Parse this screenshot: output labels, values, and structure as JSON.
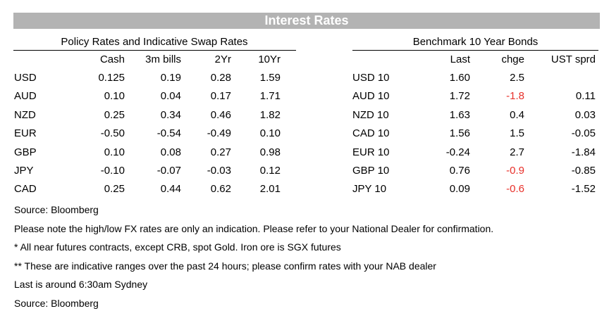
{
  "banner": {
    "title": "Interest Rates"
  },
  "policy": {
    "title": "Policy Rates and Indicative Swap Rates",
    "headers": [
      "",
      "Cash",
      "3m bills",
      "2Yr",
      "10Yr"
    ],
    "rows": [
      [
        "USD",
        "0.125",
        "0.19",
        "0.28",
        "1.59"
      ],
      [
        "AUD",
        "0.10",
        "0.04",
        "0.17",
        "1.71"
      ],
      [
        "NZD",
        "0.25",
        "0.34",
        "0.46",
        "1.82"
      ],
      [
        "EUR",
        "-0.50",
        "-0.54",
        "-0.49",
        "0.10"
      ],
      [
        "GBP",
        "0.10",
        "0.08",
        "0.27",
        "0.98"
      ],
      [
        "JPY",
        "-0.10",
        "-0.07",
        "-0.03",
        "0.12"
      ],
      [
        "CAD",
        "0.25",
        "0.44",
        "0.62",
        "2.01"
      ]
    ]
  },
  "bonds": {
    "title": "Benchmark 10 Year Bonds",
    "headers": [
      "",
      "Last",
      "chge",
      "UST sprd"
    ],
    "rows": [
      [
        "USD 10",
        "1.60",
        "2.5",
        ""
      ],
      [
        "AUD 10",
        "1.72",
        "-1.8",
        "0.11"
      ],
      [
        "NZD 10",
        "1.63",
        "0.4",
        "0.03"
      ],
      [
        "CAD 10",
        "1.56",
        "1.5",
        "-0.05"
      ],
      [
        "EUR 10",
        "-0.24",
        "2.7",
        "-1.84"
      ],
      [
        "GBP 10",
        "0.76",
        "-0.9",
        "-0.85"
      ],
      [
        "JPY 10",
        "0.09",
        "-0.6",
        "-1.52"
      ]
    ],
    "negative_color": "#e8302a"
  },
  "notes": [
    "Source: Bloomberg",
    "Please note the high/low FX rates are only an indication. Please refer to your National Dealer for confirmation.",
    "* All near futures contracts, except CRB, spot Gold.  Iron ore is SGX futures",
    "** These are indicative ranges over the past 24 hours; please confirm rates with your NAB dealer",
    "Last is around 6:30am Sydney",
    "Source: Bloomberg"
  ]
}
